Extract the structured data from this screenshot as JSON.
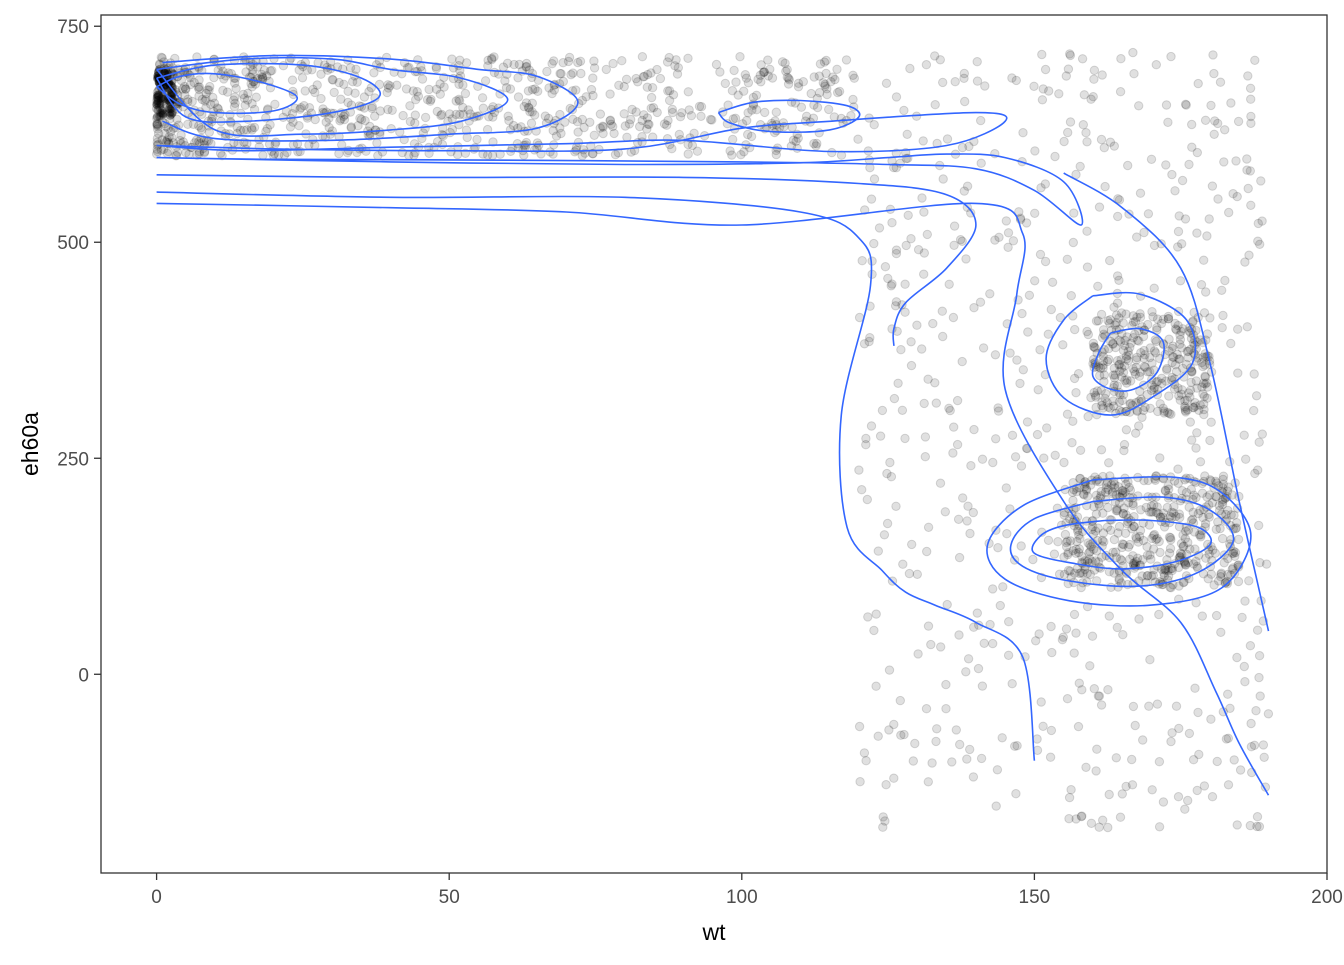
{
  "chart_data": {
    "type": "scatter",
    "title": "",
    "xlabel": "wt",
    "ylabel": "eh60a",
    "xlim": [
      -9.5,
      200
    ],
    "ylim": [
      -230,
      763
    ],
    "x_ticks": [
      {
        "value": 0,
        "label": "0"
      },
      {
        "value": 50,
        "label": "50"
      },
      {
        "value": 100,
        "label": "100"
      },
      {
        "value": 150,
        "label": "150"
      },
      {
        "value": 200,
        "label": "200"
      }
    ],
    "y_ticks": [
      {
        "value": 0,
        "label": "0"
      },
      {
        "value": 250,
        "label": "250"
      },
      {
        "value": 500,
        "label": "500"
      },
      {
        "value": 750,
        "label": "750"
      }
    ],
    "grid": false,
    "legend": "none",
    "point_color": "#000000",
    "point_alpha": 0.12,
    "contour_color": "#3366FF",
    "points_summary": {
      "approx_count": 4000,
      "clusters": [
        {
          "x_range": [
            0,
            120
          ],
          "y_range": [
            600,
            715
          ],
          "note": "dense band along top"
        },
        {
          "x_range": [
            120,
            190
          ],
          "y_range": [
            -180,
            720
          ],
          "note": "spread cloud on right"
        },
        {
          "x_range": [
            155,
            185
          ],
          "y_range": [
            100,
            230
          ],
          "note": "dense lower-right core"
        },
        {
          "x_range": [
            160,
            180
          ],
          "y_range": [
            300,
            420
          ],
          "note": "secondary right cluster"
        }
      ]
    },
    "contours": [
      {
        "name": "c1",
        "x": [
          0,
          4,
          10,
          18,
          24,
          20,
          10,
          4,
          0
        ],
        "y": [
          680,
          692,
          695,
          685,
          668,
          652,
          650,
          660,
          680
        ]
      },
      {
        "name": "c2",
        "x": [
          0,
          10,
          25,
          35,
          38,
          30,
          15,
          5,
          0
        ],
        "y": [
          690,
          705,
          705,
          690,
          668,
          650,
          640,
          645,
          690
        ]
      },
      {
        "name": "c3",
        "x": [
          0,
          15,
          30,
          40,
          52,
          60,
          52,
          40,
          25,
          10,
          0
        ],
        "y": [
          700,
          712,
          712,
          700,
          690,
          665,
          640,
          630,
          625,
          630,
          700
        ]
      },
      {
        "name": "c4",
        "x": [
          1,
          20,
          40,
          55,
          65,
          72,
          65,
          50,
          30,
          10,
          1
        ],
        "y": [
          708,
          716,
          712,
          700,
          692,
          662,
          632,
          625,
          618,
          620,
          640
        ]
      },
      {
        "name": "c5a",
        "x": [
          0,
          20,
          50,
          80,
          100,
          115,
          140,
          145,
          135,
          115,
          90,
          70,
          40,
          15,
          0
        ],
        "y": [
          612,
          608,
          606,
          608,
          632,
          640,
          650,
          640,
          612,
          605,
          618,
          614,
          610,
          606,
          612
        ]
      },
      {
        "name": "c5b",
        "x": [
          96,
          102,
          110,
          118,
          120,
          115,
          105,
          98,
          96
        ],
        "y": [
          650,
          662,
          664,
          658,
          645,
          630,
          628,
          638,
          650
        ]
      },
      {
        "name": "c6",
        "x": [
          0,
          40,
          80,
          110,
          125,
          135,
          145,
          155,
          158,
          150,
          140,
          125,
          100,
          60,
          20,
          0
        ],
        "y": [
          598,
          593,
          590,
          592,
          598,
          602,
          598,
          570,
          520,
          560,
          585,
          590,
          593,
          595,
          596,
          598
        ]
      },
      {
        "name": "c7",
        "x": [
          0,
          40,
          90,
          120,
          135,
          140,
          135,
          128,
          126,
          126
        ],
        "y": [
          578,
          575,
          575,
          568,
          555,
          520,
          470,
          430,
          400,
          380
        ]
      },
      {
        "name": "c8",
        "x": [
          0,
          40,
          80,
          110,
          120,
          122,
          117,
          118,
          124,
          128,
          133,
          140,
          148,
          150
        ],
        "y": [
          558,
          552,
          552,
          535,
          505,
          450,
          300,
          170,
          120,
          95,
          80,
          60,
          20,
          -100
        ]
      },
      {
        "name": "c9",
        "x": [
          0,
          40,
          70,
          100,
          140,
          148,
          147,
          145,
          155,
          165,
          175,
          181,
          185,
          190
        ],
        "y": [
          545,
          540,
          535,
          520,
          545,
          510,
          440,
          330,
          200,
          120,
          60,
          -20,
          -80,
          -140
        ]
      },
      {
        "name": "c10",
        "x": [
          155,
          165,
          175,
          180,
          185,
          190
        ],
        "y": [
          580,
          540,
          470,
          360,
          200,
          50
        ]
      },
      {
        "name": "c11",
        "x": [
          163,
          168,
          172,
          171,
          167,
          163,
          160,
          161,
          163
        ],
        "y": [
          395,
          400,
          385,
          350,
          330,
          330,
          345,
          372,
          395
        ]
      },
      {
        "name": "c12",
        "x": [
          160,
          168,
          176,
          177,
          170,
          163,
          155,
          152,
          155,
          160
        ],
        "y": [
          438,
          440,
          410,
          360,
          320,
          300,
          320,
          365,
          410,
          438
        ]
      },
      {
        "name": "c13",
        "x": [
          162,
          170,
          178,
          180,
          174,
          165,
          157,
          150,
          151,
          155,
          162
        ],
        "y": [
          178,
          178,
          170,
          150,
          130,
          122,
          128,
          140,
          160,
          172,
          178
        ]
      },
      {
        "name": "c14",
        "x": [
          160,
          172,
          180,
          184,
          178,
          168,
          156,
          148,
          146,
          150,
          160
        ],
        "y": [
          200,
          205,
          190,
          155,
          118,
          102,
          108,
          125,
          150,
          180,
          200
        ]
      },
      {
        "name": "c15",
        "x": [
          160,
          174,
          182,
          187,
          182,
          170,
          156,
          145,
          142,
          148,
          160
        ],
        "y": [
          225,
          228,
          210,
          160,
          100,
          80,
          85,
          110,
          150,
          195,
          225
        ]
      }
    ]
  }
}
